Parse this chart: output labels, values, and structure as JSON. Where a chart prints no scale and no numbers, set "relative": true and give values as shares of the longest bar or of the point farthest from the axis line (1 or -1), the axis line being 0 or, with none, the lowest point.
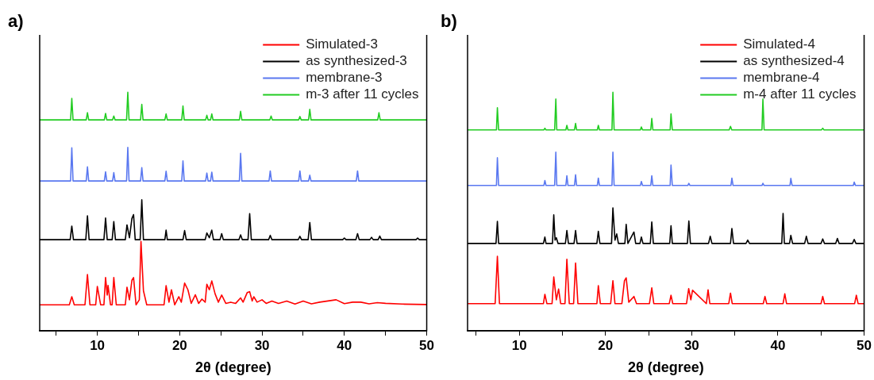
{
  "chart_data": [
    {
      "type": "line",
      "title": "a)",
      "xlabel": "2θ (degree)",
      "relative": true,
      "legend": "top right",
      "marker": "none",
      "line_style": "solid",
      "grid": false,
      "xlim": [
        3,
        50
      ],
      "xticks": [
        {
          "value": 5,
          "label": null
        },
        10,
        {
          "value": 15,
          "label": null
        },
        20,
        {
          "value": 25,
          "label": null
        },
        30,
        {
          "value": 35,
          "label": null
        },
        40,
        {
          "value": 45,
          "label": null
        },
        50
      ],
      "series": [
        {
          "name": "Simulated-3",
          "color": "#ff0000",
          "x": [
            3,
            6.6,
            6.9,
            7.2,
            8.5,
            8.8,
            9.1,
            9.8,
            10,
            10.4,
            10.8,
            11,
            11.2,
            11.3,
            11.6,
            11.8,
            12,
            12.3,
            13.4,
            13.6,
            13.9,
            14.2,
            14.4,
            14.7,
            15.1,
            15.3,
            15.6,
            16,
            18.1,
            18.35,
            18.7,
            19,
            19.4,
            19.9,
            20.2,
            20.6,
            21,
            21.4,
            21.9,
            22.3,
            22.7,
            23.1,
            23.3,
            23.6,
            23.9,
            24.3,
            24.7,
            25.1,
            25.6,
            26.2,
            26.8,
            27.4,
            27.7,
            28.2,
            28.5,
            28.8,
            29,
            29.4,
            30,
            30.5,
            31.2,
            32,
            33,
            34,
            35,
            36,
            37,
            38,
            39,
            40,
            41,
            42,
            43,
            44,
            45,
            47,
            50
          ],
          "values": [
            0.109,
            0.109,
            0.143,
            0.109,
            0.109,
            0.236,
            0.109,
            0.109,
            0.186,
            0.109,
            0.109,
            0.223,
            0.15,
            0.19,
            0.109,
            0.109,
            0.223,
            0.109,
            0.109,
            0.183,
            0.13,
            0.212,
            0.223,
            0.109,
            0.13,
            0.375,
            0.168,
            0.109,
            0.109,
            0.189,
            0.12,
            0.172,
            0.109,
            0.143,
            0.12,
            0.2,
            0.172,
            0.115,
            0.151,
            0.115,
            0.133,
            0.12,
            0.195,
            0.172,
            0.209,
            0.155,
            0.12,
            0.15,
            0.115,
            0.12,
            0.115,
            0.138,
            0.12,
            0.16,
            0.164,
            0.125,
            0.143,
            0.12,
            0.13,
            0.115,
            0.125,
            0.115,
            0.125,
            0.112,
            0.125,
            0.113,
            0.12,
            0.125,
            0.13,
            0.114,
            0.12,
            0.12,
            0.113,
            0.118,
            0.115,
            0.112,
            0.11
          ]
        },
        {
          "name": "as synthesized-3",
          "color": "#000000",
          "x": [
            3,
            6.7,
            6.9,
            7.1,
            8.6,
            8.8,
            9,
            10.8,
            11,
            11.2,
            11.8,
            12,
            12.2,
            13.4,
            13.6,
            13.9,
            14.2,
            14.4,
            14.6,
            15.2,
            15.4,
            15.6,
            18.2,
            18.35,
            18.5,
            20.4,
            20.6,
            20.8,
            23.1,
            23.3,
            23.6,
            23.9,
            24.1,
            24.9,
            25.1,
            25.3,
            27.2,
            27.4,
            27.6,
            28.3,
            28.5,
            28.7,
            30.8,
            31,
            31.2,
            34.4,
            34.6,
            34.8,
            35.6,
            35.8,
            36,
            39.8,
            40,
            40.2,
            41.4,
            41.6,
            41.8,
            43.1,
            43.3,
            43.5,
            44.1,
            44.3,
            44.5,
            48.7,
            48.9,
            49.1,
            50
          ],
          "values": [
            0.382,
            0.382,
            0.439,
            0.382,
            0.382,
            0.482,
            0.382,
            0.382,
            0.473,
            0.382,
            0.382,
            0.458,
            0.382,
            0.382,
            0.444,
            0.39,
            0.471,
            0.487,
            0.382,
            0.382,
            0.549,
            0.382,
            0.382,
            0.422,
            0.382,
            0.382,
            0.42,
            0.382,
            0.382,
            0.41,
            0.39,
            0.422,
            0.382,
            0.382,
            0.407,
            0.382,
            0.382,
            0.402,
            0.382,
            0.382,
            0.491,
            0.382,
            0.382,
            0.4,
            0.382,
            0.382,
            0.396,
            0.382,
            0.382,
            0.454,
            0.382,
            0.382,
            0.389,
            0.382,
            0.382,
            0.407,
            0.382,
            0.382,
            0.392,
            0.382,
            0.382,
            0.397,
            0.382,
            0.382,
            0.389,
            0.382,
            0.382
          ]
        },
        {
          "name": "membrane-3",
          "color": "#5a78f0",
          "x": [
            3,
            6.75,
            6.9,
            7.05,
            8.65,
            8.8,
            8.95,
            10.85,
            11,
            11.15,
            11.85,
            12,
            12.15,
            13.55,
            13.7,
            13.85,
            15.25,
            15.4,
            15.55,
            18.2,
            18.35,
            18.5,
            20.25,
            20.4,
            20.55,
            23.15,
            23.3,
            23.45,
            23.75,
            23.9,
            24.05,
            27.25,
            27.4,
            27.55,
            30.85,
            31,
            31.15,
            34.45,
            34.6,
            34.75,
            35.65,
            35.8,
            35.95,
            41.45,
            41.6,
            41.75,
            50
          ],
          "values": [
            0.628,
            0.628,
            0.767,
            0.628,
            0.628,
            0.687,
            0.628,
            0.628,
            0.666,
            0.628,
            0.628,
            0.663,
            0.628,
            0.628,
            0.769,
            0.628,
            0.628,
            0.684,
            0.628,
            0.628,
            0.669,
            0.628,
            0.628,
            0.712,
            0.628,
            0.628,
            0.661,
            0.628,
            0.628,
            0.665,
            0.628,
            0.628,
            0.744,
            0.628,
            0.628,
            0.67,
            0.628,
            0.628,
            0.67,
            0.628,
            0.628,
            0.652,
            0.628,
            0.628,
            0.67,
            0.628,
            0.628
          ]
        },
        {
          "name": "m-3 after 11 cycles",
          "color": "#22cc22",
          "x": [
            3,
            6.75,
            6.9,
            7.05,
            8.65,
            8.8,
            8.95,
            10.85,
            11,
            11.15,
            11.85,
            12,
            12.15,
            13.55,
            13.7,
            13.85,
            15.25,
            15.4,
            15.55,
            18.2,
            18.35,
            18.5,
            20.25,
            20.4,
            20.55,
            23.15,
            23.3,
            23.45,
            23.75,
            23.9,
            24.05,
            27.25,
            27.4,
            27.55,
            30.95,
            31.1,
            31.25,
            34.45,
            34.6,
            34.75,
            35.65,
            35.8,
            35.95,
            44.05,
            44.2,
            44.35,
            50
          ],
          "values": [
            0.884,
            0.884,
            0.974,
            0.884,
            0.884,
            0.914,
            0.884,
            0.884,
            0.911,
            0.884,
            0.884,
            0.9,
            0.884,
            0.884,
            1,
            0.884,
            0.884,
            0.949,
            0.884,
            0.884,
            0.909,
            0.884,
            0.884,
            0.942,
            0.884,
            0.884,
            0.903,
            0.884,
            0.884,
            0.909,
            0.884,
            0.884,
            0.92,
            0.884,
            0.884,
            0.9,
            0.884,
            0.884,
            0.898,
            0.884,
            0.884,
            0.928,
            0.884,
            0.884,
            0.914,
            0.884,
            0.884
          ]
        }
      ]
    },
    {
      "type": "line",
      "title": "b)",
      "xlabel": "2θ (degree)",
      "relative": true,
      "legend": "top right",
      "marker": "none",
      "line_style": "solid",
      "grid": false,
      "xlim": [
        4,
        50
      ],
      "xticks": [
        {
          "value": 5,
          "label": null
        },
        10,
        {
          "value": 15,
          "label": null
        },
        20,
        {
          "value": 25,
          "label": null
        },
        30,
        {
          "value": 35,
          "label": null
        },
        40,
        {
          "value": 45,
          "label": null
        },
        50
      ],
      "series": [
        {
          "name": "Simulated-4",
          "color": "#ff0000",
          "x": [
            4,
            7.2,
            7.46,
            7.7,
            12.8,
            12.97,
            13.2,
            13.8,
            14,
            14.3,
            14.56,
            14.8,
            15.3,
            15.52,
            15.8,
            16.3,
            16.53,
            16.8,
            19,
            19.17,
            19.4,
            20.6,
            20.86,
            21.1,
            21.9,
            22.2,
            22.4,
            22.7,
            23.3,
            23.6,
            25.1,
            25.37,
            25.6,
            27.4,
            27.6,
            27.8,
            29.4,
            29.65,
            29.9,
            30.1,
            31.7,
            31.9,
            32.1,
            34.3,
            34.5,
            34.7,
            38.3,
            38.5,
            38.7,
            40.6,
            40.8,
            41,
            45,
            45.2,
            45.4,
            48.9,
            49.1,
            49.3,
            50
          ],
          "values": [
            0.114,
            0.114,
            0.312,
            0.114,
            0.114,
            0.153,
            0.114,
            0.114,
            0.226,
            0.13,
            0.175,
            0.114,
            0.114,
            0.3,
            0.114,
            0.114,
            0.284,
            0.114,
            0.114,
            0.189,
            0.114,
            0.114,
            0.21,
            0.114,
            0.114,
            0.21,
            0.222,
            0.12,
            0.144,
            0.114,
            0.114,
            0.18,
            0.114,
            0.114,
            0.149,
            0.114,
            0.114,
            0.177,
            0.13,
            0.17,
            0.114,
            0.172,
            0.114,
            0.114,
            0.158,
            0.114,
            0.114,
            0.144,
            0.114,
            0.114,
            0.155,
            0.114,
            0.114,
            0.144,
            0.114,
            0.114,
            0.149,
            0.114,
            0.114
          ]
        },
        {
          "name": "as synthesized-4",
          "color": "#000000",
          "x": [
            4,
            7.3,
            7.46,
            7.6,
            12.8,
            12.97,
            13.1,
            13.85,
            14,
            14.15,
            14.3,
            14.5,
            15.35,
            15.52,
            15.7,
            16.35,
            16.53,
            16.7,
            19,
            19.17,
            19.35,
            20.7,
            20.86,
            21.1,
            21.3,
            21.5,
            22.25,
            22.4,
            22.6,
            23.3,
            23.5,
            24,
            24.16,
            24.35,
            25.2,
            25.37,
            25.55,
            27.45,
            27.6,
            27.75,
            29.5,
            29.67,
            29.85,
            31.95,
            32.15,
            32.35,
            34.5,
            34.66,
            34.85,
            36.3,
            36.5,
            36.7,
            40.45,
            40.6,
            40.75,
            41.35,
            41.5,
            41.7,
            43.1,
            43.3,
            43.5,
            45,
            45.2,
            45.4,
            46.7,
            46.9,
            47.1,
            48.65,
            48.85,
            49.05,
            50
          ],
          "values": [
            0.366,
            0.366,
            0.459,
            0.366,
            0.366,
            0.393,
            0.366,
            0.366,
            0.486,
            0.38,
            0.39,
            0.366,
            0.366,
            0.42,
            0.366,
            0.366,
            0.42,
            0.366,
            0.366,
            0.417,
            0.366,
            0.366,
            0.515,
            0.38,
            0.406,
            0.366,
            0.366,
            0.446,
            0.366,
            0.414,
            0.366,
            0.366,
            0.393,
            0.366,
            0.366,
            0.456,
            0.366,
            0.366,
            0.44,
            0.366,
            0.366,
            0.46,
            0.366,
            0.366,
            0.396,
            0.366,
            0.366,
            0.429,
            0.366,
            0.366,
            0.38,
            0.366,
            0.366,
            0.492,
            0.366,
            0.366,
            0.4,
            0.366,
            0.366,
            0.396,
            0.366,
            0.366,
            0.385,
            0.366,
            0.366,
            0.387,
            0.366,
            0.366,
            0.383,
            0.366,
            0.366
          ]
        },
        {
          "name": "membrane-4",
          "color": "#5a78f0",
          "x": [
            4,
            7.35,
            7.46,
            7.6,
            12.85,
            12.97,
            13.1,
            14.1,
            14.24,
            14.35,
            15.4,
            15.52,
            15.65,
            16.4,
            16.53,
            16.65,
            19.05,
            19.17,
            19.3,
            20.75,
            20.86,
            21,
            24.05,
            24.16,
            24.3,
            25.25,
            25.37,
            25.5,
            27.5,
            27.6,
            27.75,
            29.55,
            29.67,
            29.8,
            34.55,
            34.66,
            34.8,
            38.15,
            38.26,
            38.4,
            41.4,
            41.5,
            41.65,
            48.75,
            48.85,
            49,
            50
          ],
          "values": [
            0.609,
            0.609,
            0.725,
            0.609,
            0.609,
            0.63,
            0.609,
            0.609,
            0.749,
            0.609,
            0.609,
            0.65,
            0.609,
            0.609,
            0.654,
            0.609,
            0.609,
            0.64,
            0.609,
            0.609,
            0.749,
            0.609,
            0.609,
            0.626,
            0.609,
            0.609,
            0.65,
            0.609,
            0.609,
            0.695,
            0.609,
            0.609,
            0.618,
            0.609,
            0.609,
            0.64,
            0.609,
            0.609,
            0.618,
            0.609,
            0.609,
            0.639,
            0.609,
            0.609,
            0.623,
            0.609,
            0.609
          ]
        },
        {
          "name": "m-4 after 11 cycles",
          "color": "#22cc22",
          "x": [
            4,
            7.35,
            7.46,
            7.6,
            12.85,
            12.97,
            13.1,
            14.1,
            14.24,
            14.35,
            15.4,
            15.52,
            15.65,
            16.4,
            16.53,
            16.65,
            19.05,
            19.17,
            19.3,
            20.75,
            20.86,
            21,
            24.05,
            24.16,
            24.3,
            25.25,
            25.37,
            25.5,
            27.5,
            27.6,
            27.75,
            34.35,
            34.5,
            34.65,
            38.15,
            38.26,
            38.4,
            45.05,
            45.2,
            45.35,
            50
          ],
          "values": [
            0.842,
            0.842,
            0.935,
            0.842,
            0.842,
            0.849,
            0.842,
            0.842,
            0.971,
            0.842,
            0.842,
            0.861,
            0.842,
            0.842,
            0.869,
            0.842,
            0.842,
            0.861,
            0.842,
            0.842,
            1,
            0.842,
            0.842,
            0.854,
            0.842,
            0.842,
            0.89,
            0.842,
            0.842,
            0.909,
            0.842,
            0.842,
            0.857,
            0.842,
            0.842,
            0.971,
            0.842,
            0.842,
            0.849,
            0.842,
            0.842
          ]
        }
      ]
    }
  ]
}
